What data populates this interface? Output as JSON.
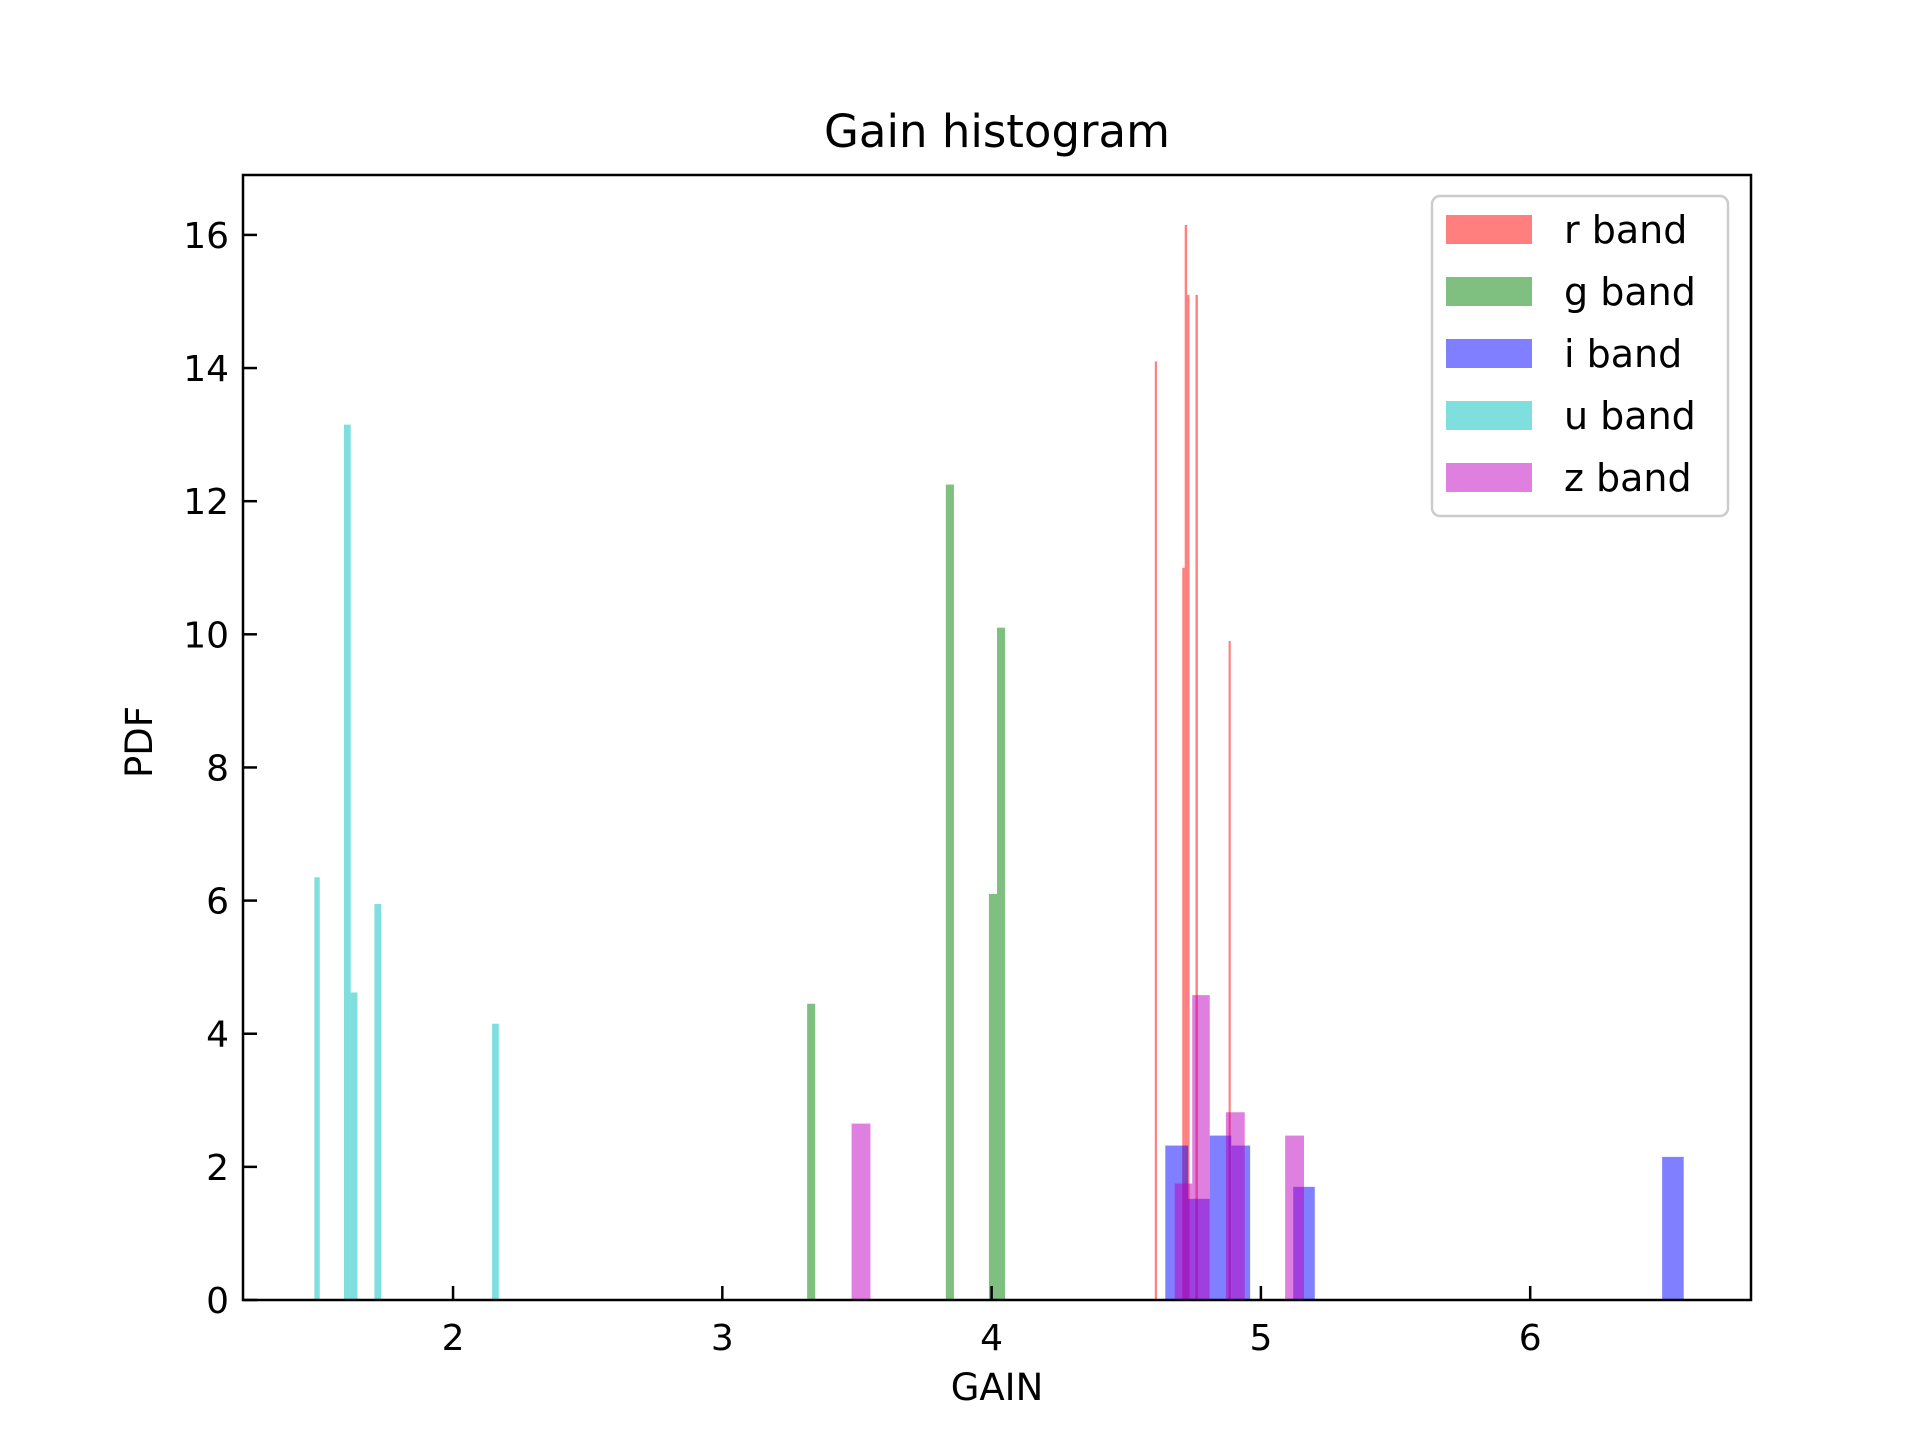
{
  "chart_data": {
    "type": "bar",
    "title": "Gain histogram",
    "xlabel": "GAIN",
    "ylabel": "PDF",
    "xlim": [
      1.22,
      6.82
    ],
    "ylim": [
      0,
      16.9
    ],
    "xticks": [
      2,
      3,
      4,
      5,
      6
    ],
    "yticks": [
      0,
      2,
      4,
      6,
      8,
      10,
      12,
      14,
      16
    ],
    "grid": false,
    "legend_position": "top-right",
    "series": [
      {
        "name": "r band",
        "color": "#ff0000",
        "opacity": 0.5,
        "bars": [
          {
            "x0": 4.606,
            "x1": 4.614,
            "value": 14.1
          },
          {
            "x0": 4.708,
            "x1": 4.717,
            "value": 11.0
          },
          {
            "x0": 4.717,
            "x1": 4.726,
            "value": 16.15
          },
          {
            "x0": 4.726,
            "x1": 4.735,
            "value": 15.1
          },
          {
            "x0": 4.757,
            "x1": 4.766,
            "value": 15.1
          },
          {
            "x0": 4.88,
            "x1": 4.888,
            "value": 9.9
          }
        ]
      },
      {
        "name": "g band",
        "color": "#008000",
        "opacity": 0.5,
        "bars": [
          {
            "x0": 3.315,
            "x1": 3.345,
            "value": 4.45
          },
          {
            "x0": 3.83,
            "x1": 3.86,
            "value": 12.25
          },
          {
            "x0": 3.99,
            "x1": 4.02,
            "value": 6.1
          },
          {
            "x0": 4.02,
            "x1": 4.05,
            "value": 10.1
          }
        ]
      },
      {
        "name": "i band",
        "color": "#0000ff",
        "opacity": 0.5,
        "bars": [
          {
            "x0": 4.645,
            "x1": 4.73,
            "value": 2.32
          },
          {
            "x0": 4.73,
            "x1": 4.81,
            "value": 1.52
          },
          {
            "x0": 4.81,
            "x1": 4.89,
            "value": 2.47
          },
          {
            "x0": 4.89,
            "x1": 4.96,
            "value": 2.32
          },
          {
            "x0": 5.12,
            "x1": 5.2,
            "value": 1.7
          },
          {
            "x0": 6.49,
            "x1": 6.57,
            "value": 2.15
          }
        ]
      },
      {
        "name": "u band",
        "color": "#00bfbf",
        "opacity": 0.5,
        "bars": [
          {
            "x0": 1.485,
            "x1": 1.505,
            "value": 6.35
          },
          {
            "x0": 1.595,
            "x1": 1.62,
            "value": 13.15
          },
          {
            "x0": 1.62,
            "x1": 1.645,
            "value": 4.62
          },
          {
            "x0": 1.708,
            "x1": 1.733,
            "value": 5.95
          },
          {
            "x0": 2.145,
            "x1": 2.17,
            "value": 4.15
          }
        ]
      },
      {
        "name": "z band",
        "color": "#bf00bf",
        "opacity": 0.5,
        "bars": [
          {
            "x0": 3.48,
            "x1": 3.55,
            "value": 2.65
          },
          {
            "x0": 4.68,
            "x1": 4.745,
            "value": 1.75
          },
          {
            "x0": 4.745,
            "x1": 4.81,
            "value": 4.58
          },
          {
            "x0": 4.87,
            "x1": 4.94,
            "value": 2.82
          },
          {
            "x0": 5.09,
            "x1": 5.16,
            "value": 2.47
          }
        ]
      }
    ]
  }
}
